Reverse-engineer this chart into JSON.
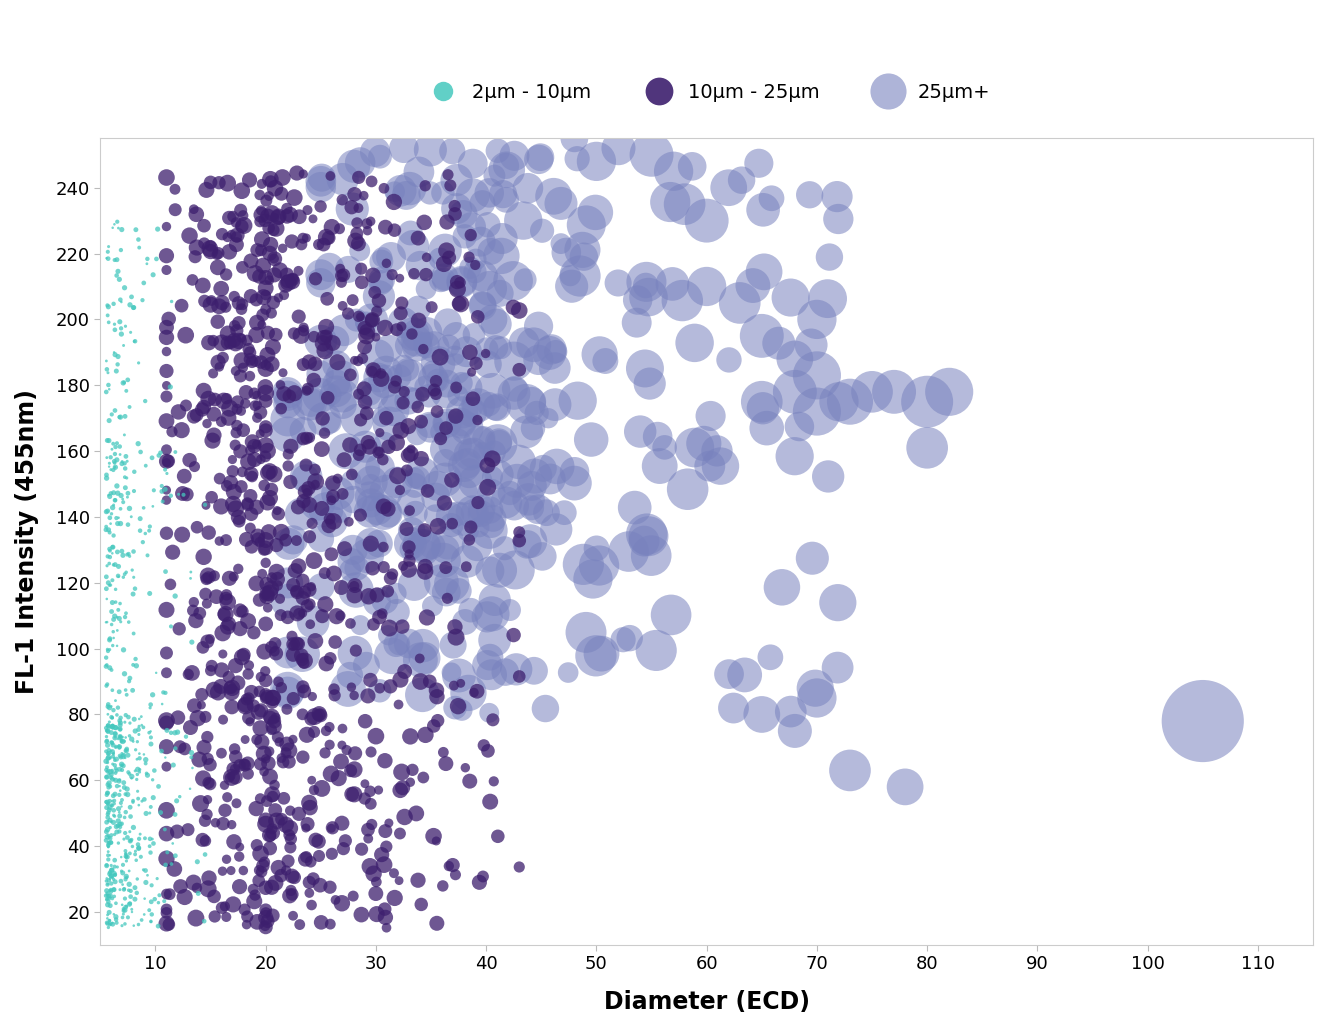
{
  "title": "",
  "xlabel": "Diameter (ECD)",
  "ylabel": "FL-1 Intensity (455nm)",
  "xlim": [
    5,
    115
  ],
  "ylim": [
    10,
    255
  ],
  "xticks": [
    10,
    20,
    30,
    40,
    50,
    60,
    70,
    80,
    90,
    100,
    110
  ],
  "yticks": [
    20,
    40,
    60,
    80,
    100,
    120,
    140,
    160,
    180,
    200,
    220,
    240
  ],
  "background_color": "#ffffff",
  "legend_labels": [
    "2μm - 10μm",
    "10μm - 25μm",
    "25μm+"
  ],
  "legend_colors": [
    "#45c8be",
    "#3d1f6e",
    "#7882be"
  ],
  "group1_color": "#45c8be",
  "group2_color": "#3d1f6e",
  "group3_color": "#7882be",
  "group1_alpha": 0.75,
  "group2_alpha": 0.75,
  "group3_alpha": 0.55,
  "seed": 42
}
